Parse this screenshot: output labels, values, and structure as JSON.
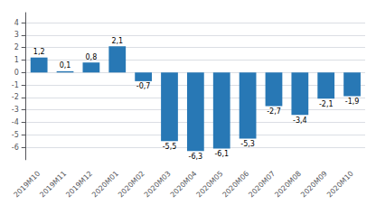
{
  "chart_data": {
    "type": "bar",
    "categories": [
      "2019M10",
      "2019M11",
      "2019M12",
      "2020M01",
      "2020M02",
      "2020M03",
      "2020M04",
      "2020M05",
      "2020M06",
      "2020M07",
      "2020M08",
      "2020M09",
      "2020M10"
    ],
    "values": [
      1.2,
      0.1,
      0.8,
      2.1,
      -0.7,
      -5.5,
      -6.3,
      -6.1,
      -5.3,
      -2.7,
      -3.4,
      -2.1,
      -1.9
    ],
    "value_labels": [
      "1,2",
      "0,1",
      "0,8",
      "2,1",
      "-0,7",
      "-5,5",
      "-6,3",
      "-6,1",
      "-5,3",
      "-2,7",
      "-3,4",
      "-2,1",
      "-1,9"
    ],
    "color": "#2878b5",
    "ylim": [
      -7,
      4.8
    ],
    "yticks": [
      -6,
      -5,
      -4,
      -3,
      -2,
      -1,
      0,
      1,
      2,
      3,
      4
    ],
    "grid": true,
    "data_labels": true
  }
}
